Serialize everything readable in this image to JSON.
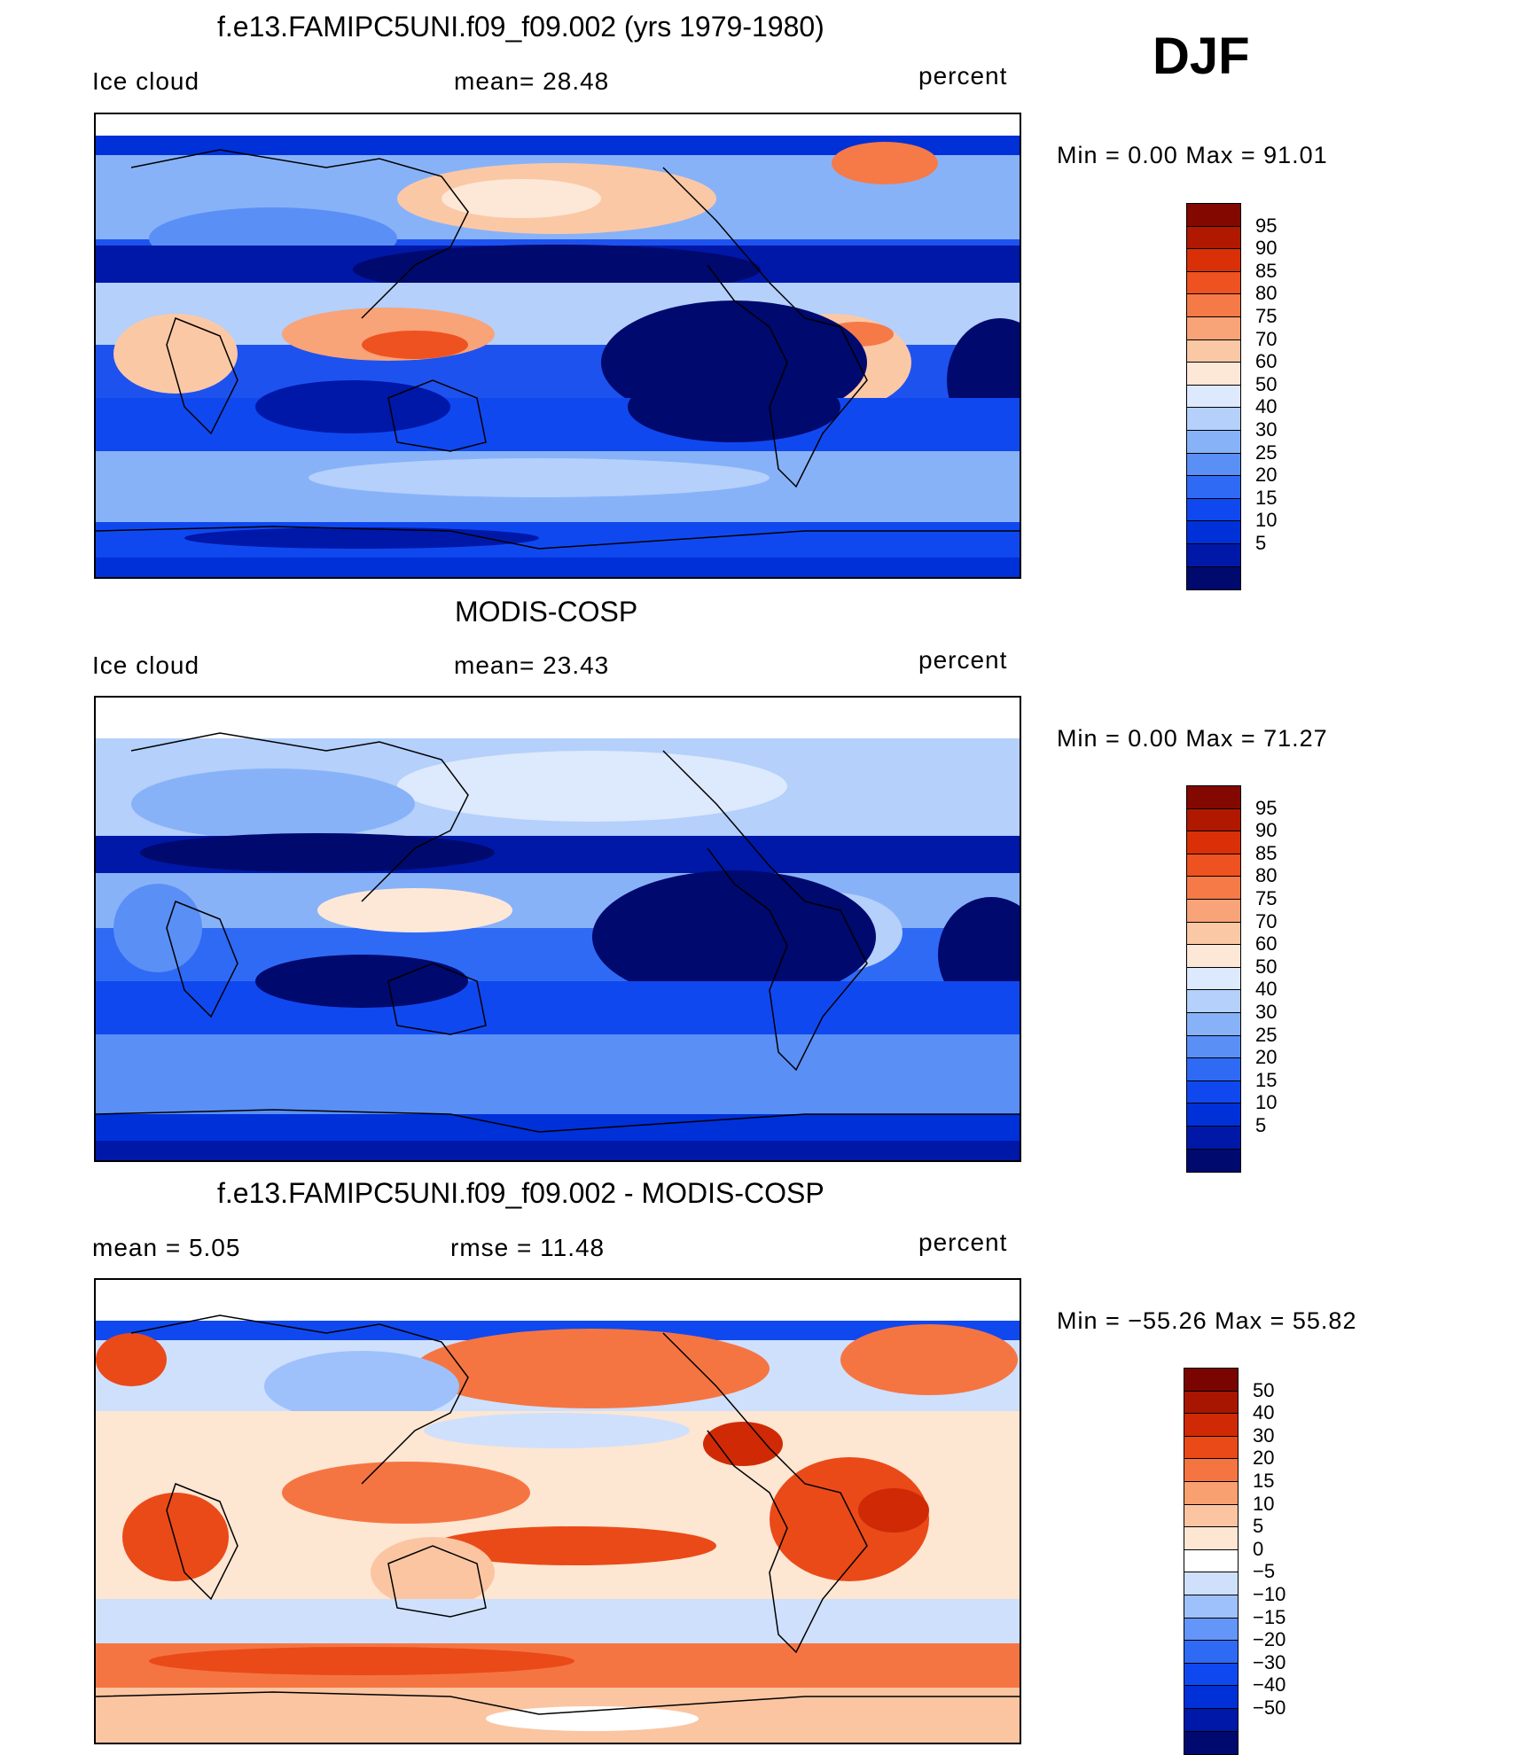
{
  "season": "DJF",
  "palette": {
    "abs": [
      "#00096e",
      "#0018a8",
      "#0030d8",
      "#1048f0",
      "#2f6af5",
      "#5a8ff6",
      "#88b2f8",
      "#b4d0fb",
      "#dde9fc",
      "#fde8d8",
      "#fbc8a6",
      "#f8a378",
      "#f57a48",
      "#ee5220",
      "#d93008",
      "#b01800",
      "#820800"
    ],
    "diff": [
      "#00096e",
      "#0018a8",
      "#0030d8",
      "#1048f0",
      "#2f6af5",
      "#6495f8",
      "#9ec1fb",
      "#cfe0fc",
      "#ffffff",
      "#fde6d2",
      "#fbc5a2",
      "#f8a070",
      "#f57542",
      "#ea4a18",
      "#cf2a05",
      "#a81500",
      "#7a0500"
    ]
  },
  "panels": [
    {
      "id": "model",
      "title": "f.e13.FAMIPC5UNI.f09_f09.002 (yrs 1979-1980)",
      "left_label": "Ice cloud",
      "mid_label": "mean=   28.48",
      "right_label": "percent",
      "minmax": "Min  =     0.00  Max  =    91.01",
      "colorbar": {
        "type": "abs",
        "labels": [
          "95",
          "90",
          "85",
          "80",
          "75",
          "70",
          "60",
          "50",
          "40",
          "30",
          "25",
          "20",
          "15",
          "10",
          "5"
        ]
      }
    },
    {
      "id": "obs",
      "title": "MODIS-COSP",
      "left_label": "Ice cloud",
      "mid_label": "mean=   23.43",
      "right_label": "percent",
      "minmax": "Min  =     0.00  Max  =    71.27",
      "colorbar": {
        "type": "abs",
        "labels": [
          "95",
          "90",
          "85",
          "80",
          "75",
          "70",
          "60",
          "50",
          "40",
          "30",
          "25",
          "20",
          "15",
          "10",
          "5"
        ]
      }
    },
    {
      "id": "diff",
      "title": "f.e13.FAMIPC5UNI.f09_f09.002 - MODIS-COSP",
      "left_label": "mean  =     5.05",
      "mid_label": "rmse  =    11.48",
      "right_label": "percent",
      "minmax": "Min  = −55.26  Max  =    55.82",
      "colorbar": {
        "type": "diff",
        "labels": [
          "50",
          "40",
          "30",
          "20",
          "15",
          "10",
          "5",
          "0",
          "−5",
          "−10",
          "−15",
          "−20",
          "−30",
          "−40",
          "−50"
        ]
      }
    }
  ]
}
